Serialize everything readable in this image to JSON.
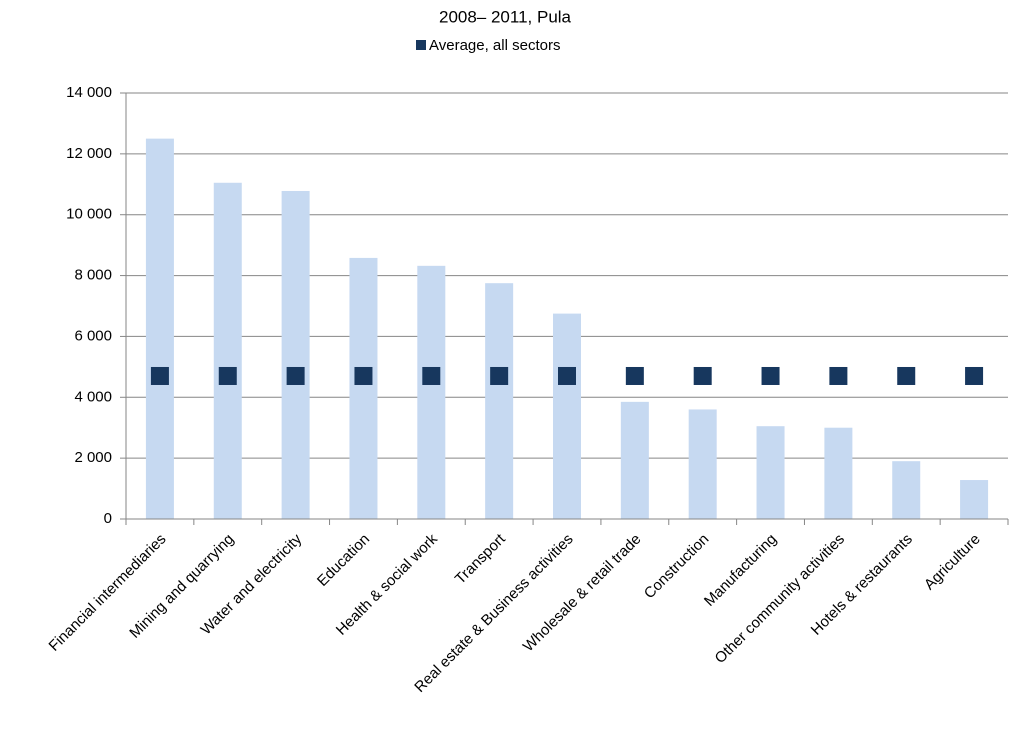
{
  "chart_data": {
    "type": "bar",
    "title": "2008– 2011, Pula",
    "categories": [
      "Financial intermediaries",
      "Mining and quarrying",
      "Water and electricity",
      "Education",
      "Health & social work",
      "Transport",
      "Real estate & Business activities",
      "Wholesale & retail trade",
      "Construction",
      "Manufacturing",
      "Other community activities",
      "Hotels & restaurants",
      "Agriculture"
    ],
    "series": [
      {
        "color": "#c6d9f1",
        "values": [
          12500,
          11050,
          10780,
          8580,
          8320,
          7750,
          6750,
          3850,
          3600,
          3050,
          3000,
          1900,
          1280
        ]
      },
      {
        "name": "Average, all sectors",
        "color": "#17375e",
        "marker": "square",
        "values": [
          4700,
          4700,
          4700,
          4700,
          4700,
          4700,
          4700,
          4700,
          4700,
          4700,
          4700,
          4700,
          4700
        ]
      }
    ],
    "ylim": [
      0,
      14000
    ],
    "yticks": [
      0,
      {
        "value": 2000,
        "label": "2 000"
      },
      {
        "value": 4000,
        "label": "4 000"
      },
      {
        "value": 6000,
        "label": "6 000"
      },
      {
        "value": 8000,
        "label": "8 000"
      },
      {
        "value": 10000,
        "label": "10 000"
      },
      {
        "value": 12000,
        "label": "12 000"
      },
      {
        "value": 14000,
        "label": "14 000"
      }
    ],
    "grid": true
  }
}
